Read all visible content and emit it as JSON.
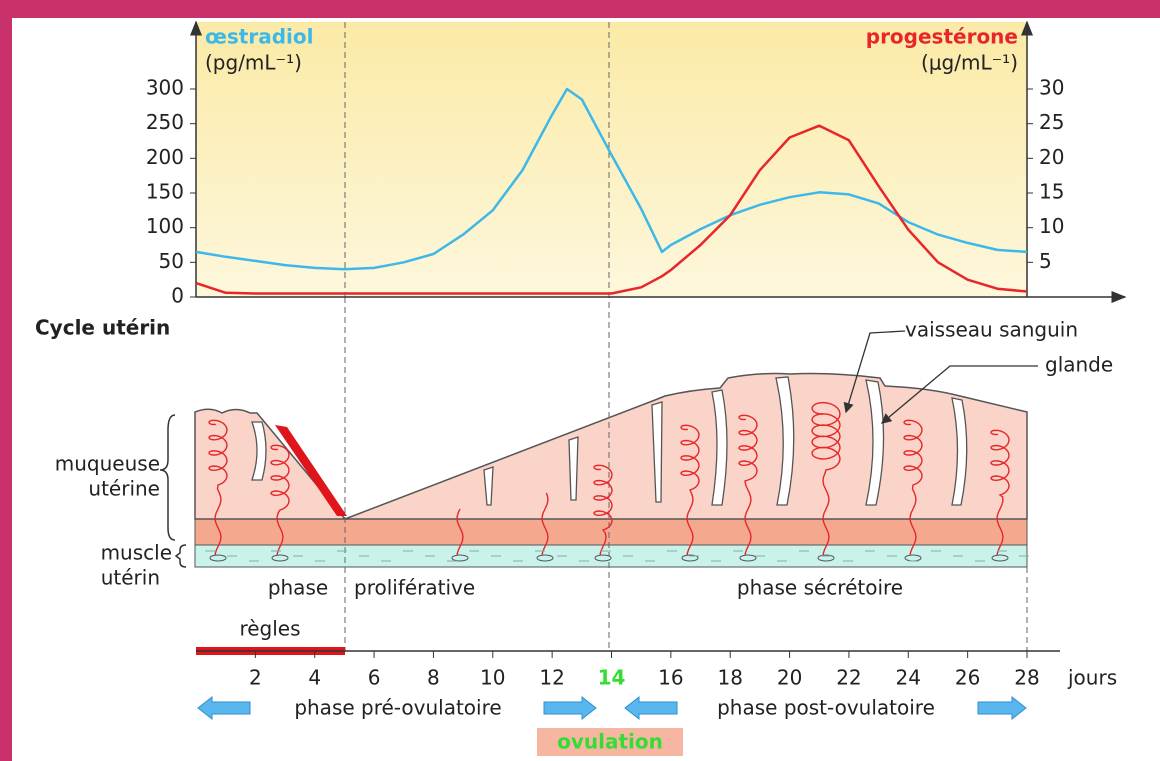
{
  "chart_data": {
    "type": "line",
    "y_unit": "(pg/mL⁻¹)",
    "y2_unit": "(μg/mL⁻¹)",
    "x_label": "jours",
    "x": [
      0,
      1,
      2,
      3,
      4,
      5,
      6,
      7,
      8,
      9,
      10,
      11,
      12,
      12.5,
      13,
      14,
      15,
      15.7,
      16,
      17,
      18,
      19,
      20,
      21,
      22,
      23,
      24,
      25,
      26,
      27,
      28
    ],
    "series": [
      {
        "name": "œstradiol",
        "color": "#3db8e8",
        "values": [
          65,
          58,
          52,
          46,
          42,
          40,
          42,
          50,
          62,
          90,
          125,
          183,
          263,
          300,
          285,
          205,
          127,
          65,
          75,
          98,
          118,
          133,
          144,
          151,
          148,
          135,
          108,
          90,
          78,
          68,
          65
        ]
      },
      {
        "name": "progestérone",
        "color": "#e8262a",
        "axis": "y2",
        "values": [
          2,
          0.6,
          0.5,
          0.5,
          0.5,
          0.5,
          0.5,
          0.5,
          0.5,
          0.5,
          0.5,
          0.5,
          0.5,
          0.5,
          0.5,
          0.5,
          1.4,
          3,
          3.9,
          7.5,
          11.8,
          18.3,
          23,
          24.7,
          22.6,
          16,
          9.7,
          5,
          2.5,
          1.2,
          0.8
        ]
      }
    ],
    "xlim": [
      0,
      28
    ],
    "xticks": [
      2,
      4,
      6,
      8,
      10,
      12,
      {
        "value": 14,
        "label": "14",
        "color": "#33dd33"
      },
      16,
      18,
      20,
      22,
      24,
      26,
      28
    ],
    "ylim": [
      0,
      300
    ],
    "yticks": [
      0,
      50,
      100,
      150,
      200,
      250,
      300
    ],
    "y2lim": [
      0,
      30
    ],
    "y2ticks": [
      5,
      10,
      15,
      20,
      25,
      30
    ]
  },
  "diagram": {
    "section_title": "Cycle utérin",
    "callouts": [
      "vaisseau sanguin",
      "glande"
    ],
    "mucosa": [
      "muqueuse",
      "utérine"
    ],
    "muscle": [
      "muscle",
      "utérin"
    ],
    "phases": [
      "phase",
      "proliférative",
      "phase sécrétoire"
    ],
    "menses": "règles",
    "periods": [
      "phase pré-ovulatoire",
      "phase post-ovulatoire"
    ],
    "event": "ovulation"
  }
}
